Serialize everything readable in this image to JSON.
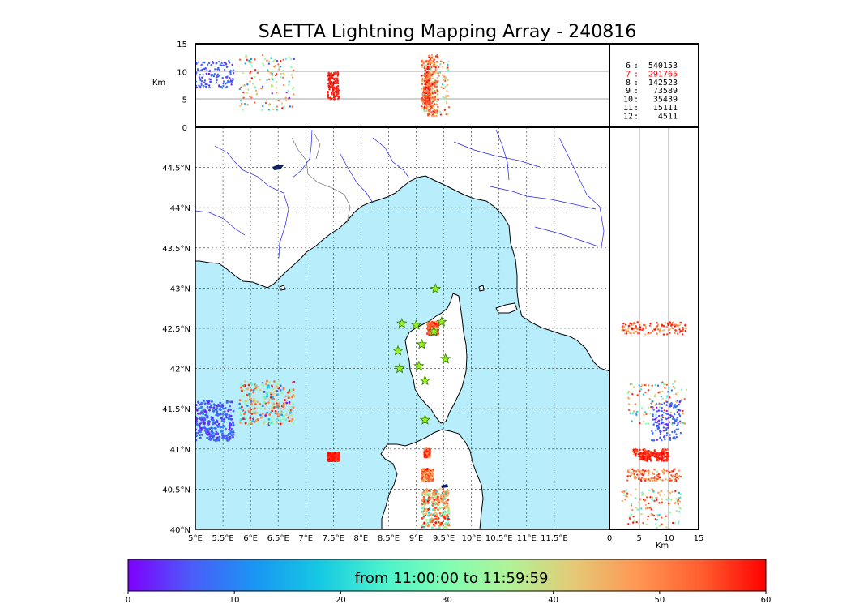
{
  "chart_data": {
    "type": "scatter",
    "title": "SAETTA Lightning Mapping Array - 240816",
    "map": {
      "lon_range": [
        5,
        12.5
      ],
      "lat_range": [
        40,
        45
      ],
      "lon_ticks": [
        "5°E",
        "5.5°E",
        "6°E",
        "6.5°E",
        "7°E",
        "7.5°E",
        "8°E",
        "8.5°E",
        "9°E",
        "9.5°E",
        "10°E",
        "10.5°E",
        "11°E",
        "11.5°E"
      ],
      "lat_ticks": [
        "40°N",
        "40.5°N",
        "41°N",
        "41.5°N",
        "42°N",
        "42.5°N",
        "43°N",
        "43.5°N",
        "44°N",
        "44.5°N"
      ],
      "grid": true
    },
    "altitude_axis": {
      "label": "Km",
      "range": [
        0,
        15
      ],
      "ticks": [
        "0",
        "5",
        "10",
        "15"
      ]
    },
    "legend": {
      "placement": "top-right",
      "highlight_color": "#ff0000",
      "entries": [
        {
          "key": "6",
          "count": "540153",
          "highlight": false
        },
        {
          "key": "7",
          "count": "291765",
          "highlight": true
        },
        {
          "key": "8",
          "count": "142523",
          "highlight": false
        },
        {
          "key": "9",
          "count": "73589",
          "highlight": false
        },
        {
          "key": "10",
          "count": "35439",
          "highlight": false
        },
        {
          "key": "11",
          "count": "15111",
          "highlight": false
        },
        {
          "key": "12",
          "count": "4511",
          "highlight": false
        }
      ]
    },
    "stations": [
      {
        "lon": 9.35,
        "lat": 42.99
      },
      {
        "lon": 8.74,
        "lat": 42.56
      },
      {
        "lon": 9.0,
        "lat": 42.54
      },
      {
        "lon": 9.46,
        "lat": 42.58
      },
      {
        "lon": 9.32,
        "lat": 42.46
      },
      {
        "lon": 8.67,
        "lat": 42.22
      },
      {
        "lon": 9.1,
        "lat": 42.3
      },
      {
        "lon": 8.7,
        "lat": 42.0
      },
      {
        "lon": 9.05,
        "lat": 42.03
      },
      {
        "lon": 9.53,
        "lat": 42.12
      },
      {
        "lon": 9.16,
        "lat": 41.85
      },
      {
        "lon": 9.16,
        "lat": 41.36
      }
    ],
    "clusters": [
      {
        "name": "gulf_of_lion",
        "lon": [
          5.8,
          6.8
        ],
        "lat": [
          41.3,
          41.85
        ],
        "alt": [
          3,
          13
        ],
        "t": [
          0,
          60
        ]
      },
      {
        "name": "corsica_cap",
        "lon": [
          9.2,
          9.4
        ],
        "lat": [
          42.42,
          42.58
        ],
        "alt": [
          2,
          13
        ],
        "t": [
          40,
          60
        ]
      },
      {
        "name": "sardinia_south",
        "lon": [
          9.1,
          9.6
        ],
        "lat": [
          40.0,
          40.5
        ],
        "alt": [
          2,
          12
        ],
        "t": [
          15,
          60
        ]
      },
      {
        "name": "sardinia_mid",
        "lon": [
          9.1,
          9.3
        ],
        "lat": [
          40.6,
          40.75
        ],
        "alt": [
          3,
          12
        ],
        "t": [
          35,
          60
        ]
      },
      {
        "name": "sardinia_north",
        "lon": [
          9.15,
          9.25
        ],
        "lat": [
          40.9,
          41.0
        ],
        "alt": [
          4,
          10
        ],
        "t": [
          45,
          60
        ]
      },
      {
        "name": "west_sea",
        "lon": [
          7.4,
          7.6
        ],
        "lat": [
          40.85,
          40.95
        ],
        "alt": [
          5,
          10
        ],
        "t": [
          55,
          60
        ]
      },
      {
        "name": "far_west",
        "lon": [
          5.0,
          5.7
        ],
        "lat": [
          41.1,
          41.6
        ],
        "alt": [
          7,
          12
        ],
        "t": [
          0,
          10
        ]
      }
    ],
    "colorbar": {
      "label": "from 11:00:00 to 11:59:59",
      "range": [
        0,
        60
      ],
      "ticks": [
        "0",
        "10",
        "20",
        "30",
        "40",
        "50",
        "60"
      ],
      "colors": [
        "#7f00ff",
        "#4a5df9",
        "#1996f3",
        "#15c9e3",
        "#4cf2cd",
        "#80feb3",
        "#b2f296",
        "#e5c976",
        "#ff9653",
        "#ff5d2e",
        "#ff0000"
      ]
    },
    "colors": {
      "sea": "#b8eefc",
      "land": "#ffffff",
      "river": "#2020ee",
      "station_fill": "#9aee20",
      "station_stroke": "#2e7d00"
    }
  }
}
